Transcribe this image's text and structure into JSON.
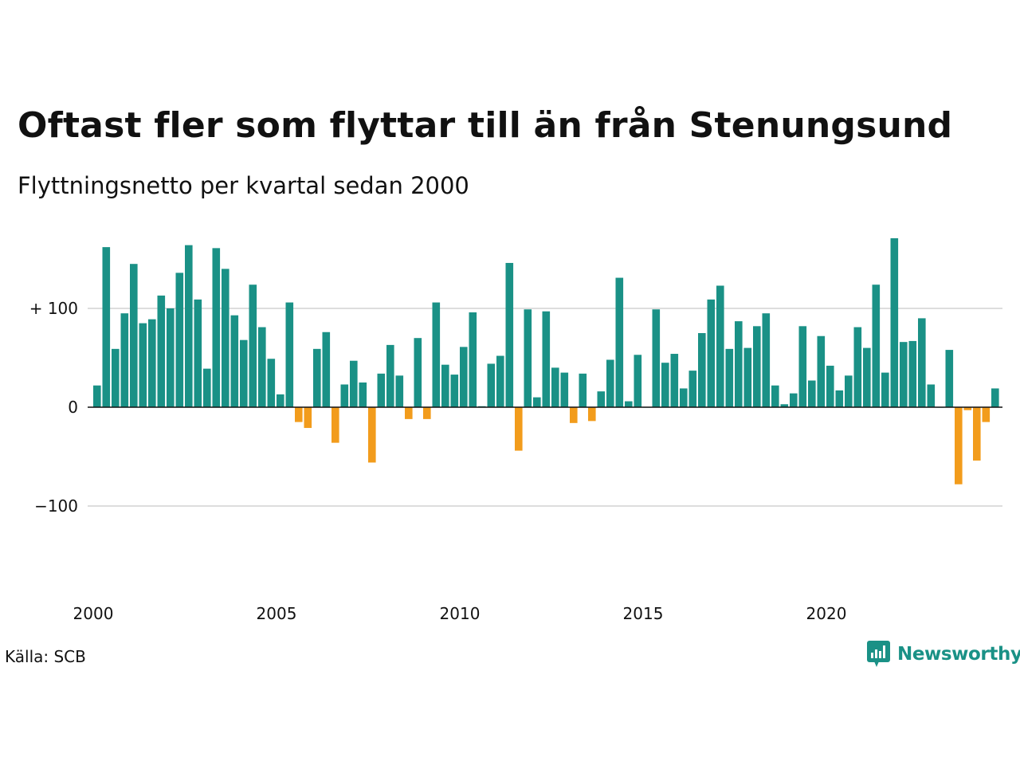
{
  "header": {
    "title": "Oftast fler som flyttar till än från Stenungsund",
    "subtitle": "Flyttningsnetto per kvartal sedan 2000"
  },
  "footer": {
    "source": "Källa: SCB",
    "brand": "Newsworthy",
    "brand_icon": "newsworthy-logo-icon"
  },
  "colors": {
    "positive": "#1a9186",
    "negative": "#f29c1c",
    "gridline": "#dddddd",
    "axis": "#111111",
    "text": "#111111"
  },
  "chart_data": {
    "type": "bar",
    "title": "Oftast fler som flyttar till än från Stenungsund",
    "subtitle": "Flyttningsnetto per kvartal sedan 2000",
    "xlabel": "",
    "ylabel": "",
    "start_year": 2000,
    "periods_per_year": 4,
    "x_ticks": [
      "2000",
      "2005",
      "2010",
      "2015",
      "2020"
    ],
    "y_ticks": [
      {
        "value": 100,
        "label": "+ 100"
      },
      {
        "value": 0,
        "label": "0"
      },
      {
        "value": -100,
        "label": "−100"
      }
    ],
    "ylim": [
      -185,
      175
    ],
    "grid": true,
    "values": [
      22,
      162,
      59,
      95,
      145,
      85,
      89,
      113,
      100,
      136,
      164,
      109,
      39,
      161,
      140,
      93,
      68,
      124,
      81,
      49,
      13,
      106,
      -15,
      -21,
      59,
      76,
      -36,
      23,
      47,
      25,
      -56,
      34,
      63,
      32,
      -12,
      70,
      -12,
      106,
      43,
      33,
      61,
      96,
      1,
      44,
      52,
      146,
      -44,
      99,
      10,
      97,
      40,
      35,
      -16,
      34,
      -14,
      16,
      48,
      131,
      6,
      53,
      0,
      99,
      45,
      54,
      19,
      37,
      75,
      109,
      123,
      59,
      87,
      60,
      82,
      95,
      22,
      3,
      14,
      82,
      27,
      72,
      42,
      17,
      32,
      81,
      60,
      124,
      35,
      171,
      66,
      67,
      90,
      23,
      0,
      58,
      -78,
      -3,
      -54,
      -15,
      19
    ]
  }
}
